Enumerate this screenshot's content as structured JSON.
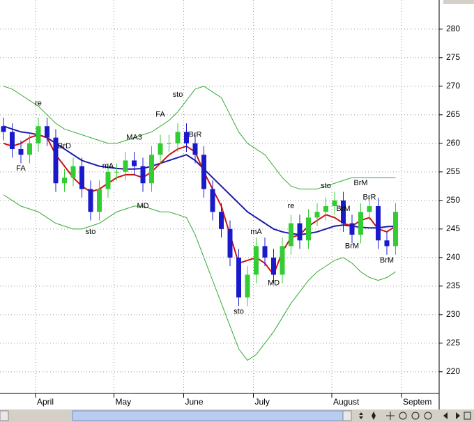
{
  "chart_data": {
    "type": "candlestick",
    "categories": [
      null,
      null,
      null,
      null,
      "April",
      null,
      null,
      null,
      null,
      null,
      null,
      null,
      null,
      "May",
      null,
      null,
      null,
      null,
      null,
      null,
      null,
      "June",
      null,
      null,
      null,
      null,
      null,
      null,
      null,
      "July",
      null,
      null,
      null,
      null,
      null,
      null,
      null,
      null,
      "August",
      null,
      null,
      null,
      null,
      null,
      null,
      null,
      "Septem"
    ],
    "open": [
      263,
      262,
      259,
      258,
      260,
      263,
      261,
      253,
      254,
      256,
      252,
      248,
      252,
      255,
      255,
      257,
      256,
      253,
      258,
      260,
      260,
      262,
      260,
      258,
      252,
      248,
      245,
      240,
      233,
      237,
      242,
      240,
      237,
      242,
      246,
      243,
      247,
      248,
      249,
      250,
      246,
      244,
      248,
      249,
      243,
      242,
      null
    ],
    "high": [
      264.5,
      263.5,
      260.5,
      261.5,
      264.5,
      264.5,
      262.5,
      255.5,
      257.5,
      257.5,
      253.5,
      253.5,
      256.5,
      256.5,
      258.5,
      258.5,
      257.5,
      259.5,
      261.5,
      261.5,
      263.5,
      263.5,
      261.5,
      259.5,
      253.5,
      249.5,
      246.5,
      241.5,
      238.5,
      243.5,
      243.5,
      241.5,
      243.5,
      247.5,
      247.5,
      248.5,
      249.5,
      250.5,
      251.5,
      251.5,
      247.5,
      249.5,
      250.5,
      250.5,
      244.5,
      249.5,
      null
    ],
    "low": [
      260.5,
      257.5,
      256.5,
      256.5,
      258.5,
      259.5,
      251.5,
      251.5,
      252.5,
      250.5,
      246.5,
      246.5,
      250.5,
      253.5,
      253.5,
      254.5,
      251.5,
      251.5,
      256.5,
      258.5,
      258.5,
      258.5,
      256.5,
      250.5,
      246.5,
      243.5,
      238.5,
      231.5,
      231.5,
      235.5,
      238.5,
      235.5,
      235.5,
      240.5,
      241.5,
      241.5,
      245.5,
      246.5,
      247.5,
      244.5,
      242.5,
      242.5,
      246.5,
      241.5,
      240.5,
      240.5,
      null
    ],
    "close": [
      262,
      259,
      258,
      260,
      263,
      261,
      253,
      254,
      256,
      252,
      248,
      252,
      255,
      255,
      257,
      256,
      253,
      258,
      260,
      260,
      262,
      260,
      258,
      252,
      248,
      245,
      240,
      233,
      237,
      242,
      240,
      237,
      242,
      246,
      243,
      247,
      248,
      249,
      250,
      246,
      244,
      248,
      249,
      243,
      242,
      248,
      null
    ],
    "up_color": "#33cc33",
    "down_color": "#1a1acc",
    "overlays": [
      {
        "color": "#33aa33",
        "values": [
          270,
          269.5,
          268.5,
          267.5,
          266.5,
          265,
          263.5,
          262.5,
          262,
          261.5,
          261,
          260.5,
          260,
          260,
          260.5,
          261,
          261.5,
          262,
          263,
          264,
          265.5,
          267.5,
          269.5,
          270,
          269,
          268,
          265,
          262,
          260,
          259,
          258,
          256,
          254,
          252.5,
          252,
          252,
          252,
          252.5,
          253,
          253.5,
          254,
          254,
          254,
          254,
          254,
          254,
          null
        ]
      },
      {
        "color": "#33aa33",
        "values": [
          251,
          250,
          249,
          248.5,
          248,
          247,
          246,
          245.5,
          245,
          245,
          245.5,
          246,
          247,
          248,
          248.5,
          249,
          249,
          248.5,
          248,
          248,
          247.5,
          247,
          244,
          240,
          236,
          232,
          228,
          224,
          222,
          223,
          225,
          227,
          229.5,
          232,
          234,
          236,
          237.5,
          238.5,
          239.5,
          240,
          239,
          237.5,
          236.5,
          236,
          236.5,
          237.5,
          null
        ]
      },
      {
        "color": "#1a1aaa",
        "values": [
          263,
          262.5,
          262,
          261.8,
          261.5,
          261,
          260,
          259,
          258,
          257,
          256.5,
          256,
          255.8,
          255.6,
          255.5,
          255.5,
          255.6,
          256,
          256.5,
          257,
          257.5,
          258,
          257,
          255.5,
          254,
          252.5,
          251,
          249.5,
          248,
          247,
          246,
          245,
          244.5,
          244.2,
          244,
          244.2,
          244.5,
          245,
          245.5,
          245.7,
          245.5,
          245.3,
          245.2,
          245.2,
          245.4,
          245.5,
          null
        ]
      },
      {
        "color": "#cc1111",
        "values": [
          260,
          259.5,
          260,
          261,
          261.5,
          261,
          258,
          256,
          254,
          252.5,
          251.5,
          252,
          253,
          254,
          254.5,
          254.5,
          254,
          255,
          256.5,
          258,
          259,
          259.5,
          258.5,
          255,
          252,
          249,
          244,
          239,
          239.5,
          240,
          239,
          237,
          241,
          243.5,
          244,
          245.5,
          246.5,
          247.5,
          247,
          246,
          245.5,
          246.5,
          247,
          245,
          244.5,
          245.5,
          null
        ]
      }
    ],
    "annotations": [
      {
        "label": "FA",
        "at": 2,
        "price": 255.6
      },
      {
        "label": "re",
        "at": 4,
        "price": 267
      },
      {
        "label": "BrD",
        "at": 7,
        "price": 259.5
      },
      {
        "label": "sto",
        "at": 10,
        "price": 244.5
      },
      {
        "label": "mA",
        "at": 12,
        "price": 256
      },
      {
        "label": "MA3",
        "at": 15,
        "price": 261
      },
      {
        "label": "MD",
        "at": 16,
        "price": 249
      },
      {
        "label": "FA",
        "at": 18,
        "price": 265
      },
      {
        "label": "sto",
        "at": 20,
        "price": 268.5
      },
      {
        "label": "BrR",
        "at": 22,
        "price": 261.5
      },
      {
        "label": "sto",
        "at": 27,
        "price": 230.5
      },
      {
        "label": "mA",
        "at": 29,
        "price": 244.5
      },
      {
        "label": "MD",
        "at": 31,
        "price": 235.5
      },
      {
        "label": "re",
        "at": 33,
        "price": 249
      },
      {
        "label": "sto",
        "at": 37,
        "price": 252.5
      },
      {
        "label": "BrM",
        "at": 39,
        "price": 248.5
      },
      {
        "label": "BrM",
        "at": 40,
        "price": 242
      },
      {
        "label": "BrM",
        "at": 41,
        "price": 253
      },
      {
        "label": "BrR",
        "at": 42,
        "price": 250.5
      },
      {
        "label": "BrM",
        "at": 44,
        "price": 239.5
      }
    ],
    "ylim": [
      216.2,
      285.1
    ],
    "yticks": [
      220,
      225,
      230,
      235,
      240,
      245,
      250,
      255,
      260,
      265,
      270,
      275,
      280
    ],
    "grid": true
  }
}
